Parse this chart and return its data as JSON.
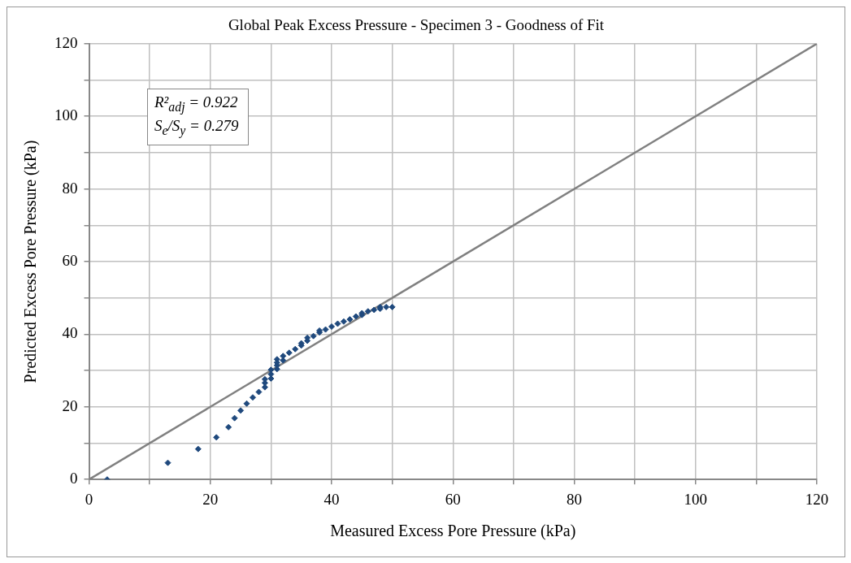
{
  "chart_data": {
    "type": "scatter",
    "title": "Global Peak Excess Pressure - Specimen 3 - Goodness of Fit",
    "xlabel": "Measured Excess Pore Pressure (kPa)",
    "ylabel": "Predicted Excess Pore Pressure (kPa)",
    "annotations": [
      "R²$_{adj}$ = 0.922",
      "S$_{e}$/S$_{y}$ = 0.279"
    ],
    "xlim": [
      0,
      120
    ],
    "ylim": [
      0,
      120
    ],
    "xticks": [
      0,
      {
        "value": 10,
        "label": null
      },
      20,
      {
        "value": 30,
        "label": null
      },
      40,
      {
        "value": 50,
        "label": null
      },
      60,
      {
        "value": 70,
        "label": null
      },
      80,
      {
        "value": 90,
        "label": null
      },
      100,
      {
        "value": 110,
        "label": null
      },
      120
    ],
    "yticks": [
      0,
      {
        "value": 10,
        "label": null
      },
      20,
      {
        "value": 30,
        "label": null
      },
      40,
      {
        "value": 50,
        "label": null
      },
      60,
      {
        "value": 70,
        "label": null
      },
      80,
      {
        "value": 90,
        "label": null
      },
      100,
      {
        "value": 110,
        "label": null
      },
      120
    ],
    "grid": true,
    "legend": false,
    "marker": "diamond",
    "series": [
      {
        "type": "scatter",
        "color": "#1f497d",
        "x": [
          3,
          13,
          18,
          21,
          23,
          24,
          25,
          26,
          27,
          28,
          29,
          29,
          29,
          30,
          30,
          30,
          31,
          31,
          31,
          31,
          32,
          32,
          33,
          34,
          35,
          35,
          36,
          36,
          37,
          38,
          38,
          39,
          40,
          41,
          42,
          43,
          44,
          45,
          45,
          46,
          47,
          48,
          48,
          49,
          50
        ],
        "values": [
          0,
          4.6,
          8.4,
          11.6,
          14.4,
          16.9,
          19,
          20.9,
          22.6,
          24.1,
          25.4,
          26.6,
          27.6,
          27.8,
          29,
          30.2,
          30.4,
          31.4,
          32.2,
          33.1,
          32.8,
          34,
          34.9,
          35.9,
          36.9,
          37.5,
          38.2,
          39,
          39.5,
          40.5,
          41,
          41.3,
          42.1,
          42.9,
          43.5,
          44.1,
          44.9,
          45.3,
          45.8,
          46.3,
          46.7,
          47,
          47.5,
          47.5,
          47.5
        ]
      },
      {
        "type": "line",
        "color": "#808080",
        "line_style": "solid",
        "marker": "none",
        "x": [
          0,
          120
        ],
        "values": [
          0,
          120
        ]
      }
    ]
  }
}
